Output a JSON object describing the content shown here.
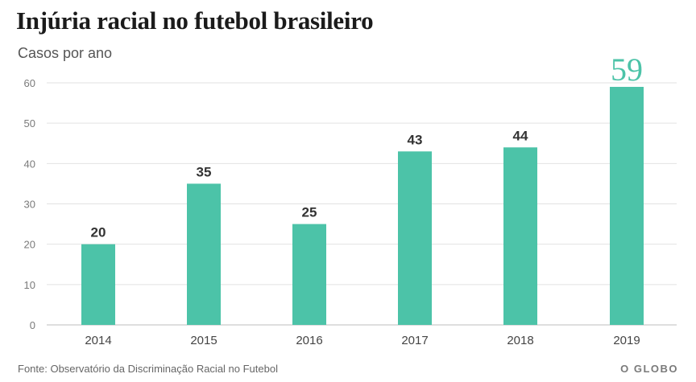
{
  "header": {
    "title": "Injúria racial no futebol brasileiro",
    "subtitle": "Casos por ano"
  },
  "footer": {
    "source": "Fonte: Observatório da Discriminação Racial no Futebol",
    "logo": "O GLOBO"
  },
  "colors": {
    "bar": "#4cc3a8",
    "highlight_label": "#4cc3a8",
    "grid": "#e2e2e2",
    "axis_text": "#7a7a7a",
    "label_text": "#333333"
  },
  "chart_data": {
    "type": "bar",
    "title": "Injúria racial no futebol brasileiro",
    "subtitle": "Casos por ano",
    "categories": [
      "2014",
      "2015",
      "2016",
      "2017",
      "2018",
      "2019"
    ],
    "values": [
      20,
      35,
      25,
      43,
      44,
      59
    ],
    "value_labels": [
      "20",
      "35",
      "25",
      "43",
      "44",
      "59"
    ],
    "highlight_index": 5,
    "ylim": [
      0,
      60
    ],
    "yticks": [
      0,
      10,
      20,
      30,
      40,
      50,
      60
    ],
    "ytick_labels": [
      "0",
      "10",
      "20",
      "30",
      "40",
      "50",
      "60"
    ],
    "grid": true,
    "legend": "none"
  }
}
